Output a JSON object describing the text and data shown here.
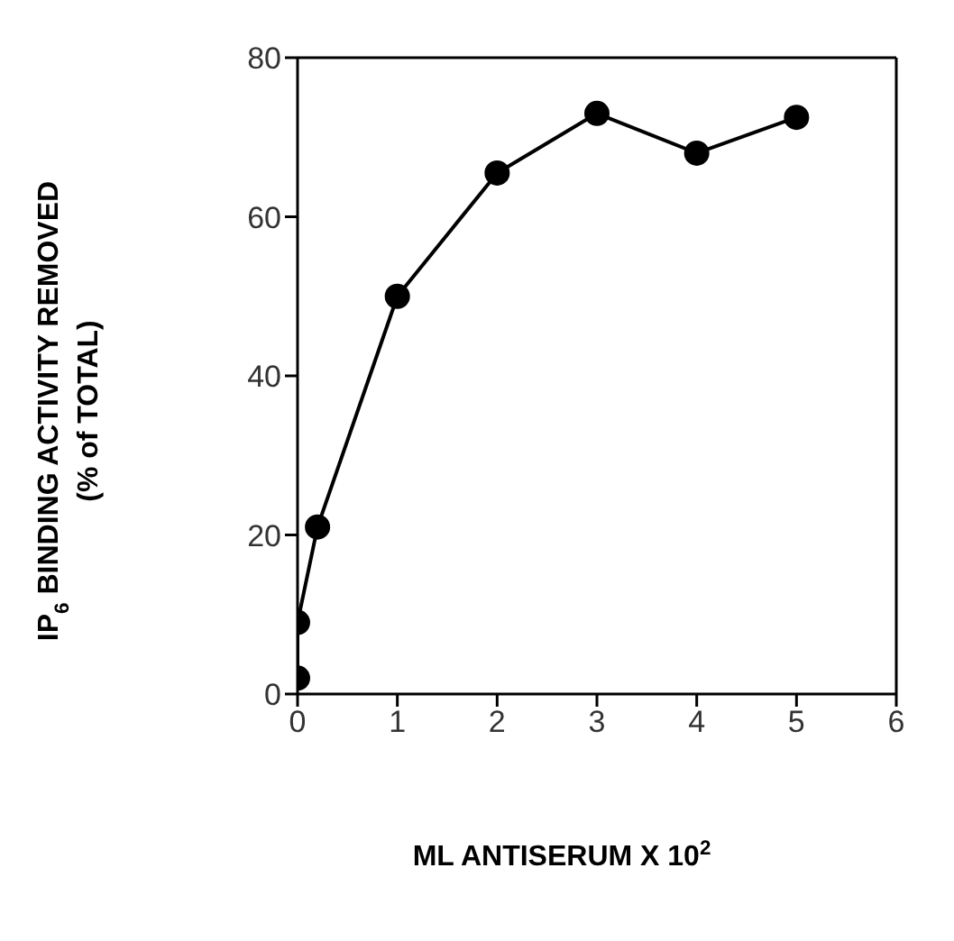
{
  "chart_data": {
    "type": "line",
    "xlabel": "ML ANTISERUM X 10$^{2}$",
    "ylabel": "IP$_{6}$ BINDING ACTIVITY REMOVED\n(% of TOTAL)",
    "x": [
      0,
      0,
      0.2,
      1,
      2,
      3,
      4,
      5
    ],
    "series": [
      {
        "color": "#000000",
        "values": [
          2,
          9,
          21,
          50,
          65.5,
          73,
          68,
          72.5
        ]
      }
    ],
    "xlim": [
      0,
      6
    ],
    "xticks": [
      0,
      1,
      2,
      3,
      4,
      5,
      6
    ],
    "ylim": [
      0,
      80
    ],
    "yticks": [
      0,
      20,
      40,
      60,
      80
    ],
    "grid": false,
    "legend": false,
    "marker": "circle",
    "line_style": "solid"
  }
}
